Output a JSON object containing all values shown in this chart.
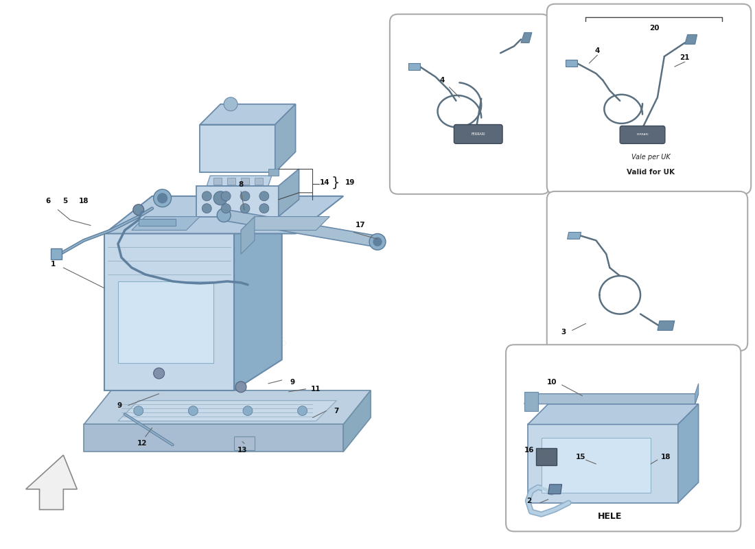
{
  "bg_color": "#ffffff",
  "lb": "#c5d8ea",
  "mb": "#9ab5cc",
  "db": "#6a8fac",
  "sb": "#b0c8dc",
  "hl": "#deeaf4",
  "gl": "#444444",
  "dg": "#222222",
  "line_col": "#666666",
  "vale_uk_text": [
    "Vale per UK",
    "Valid for UK"
  ],
  "hele_text": "HELE",
  "watermark1": "europ",
  "watermark2": "a leader for parts since 1985"
}
